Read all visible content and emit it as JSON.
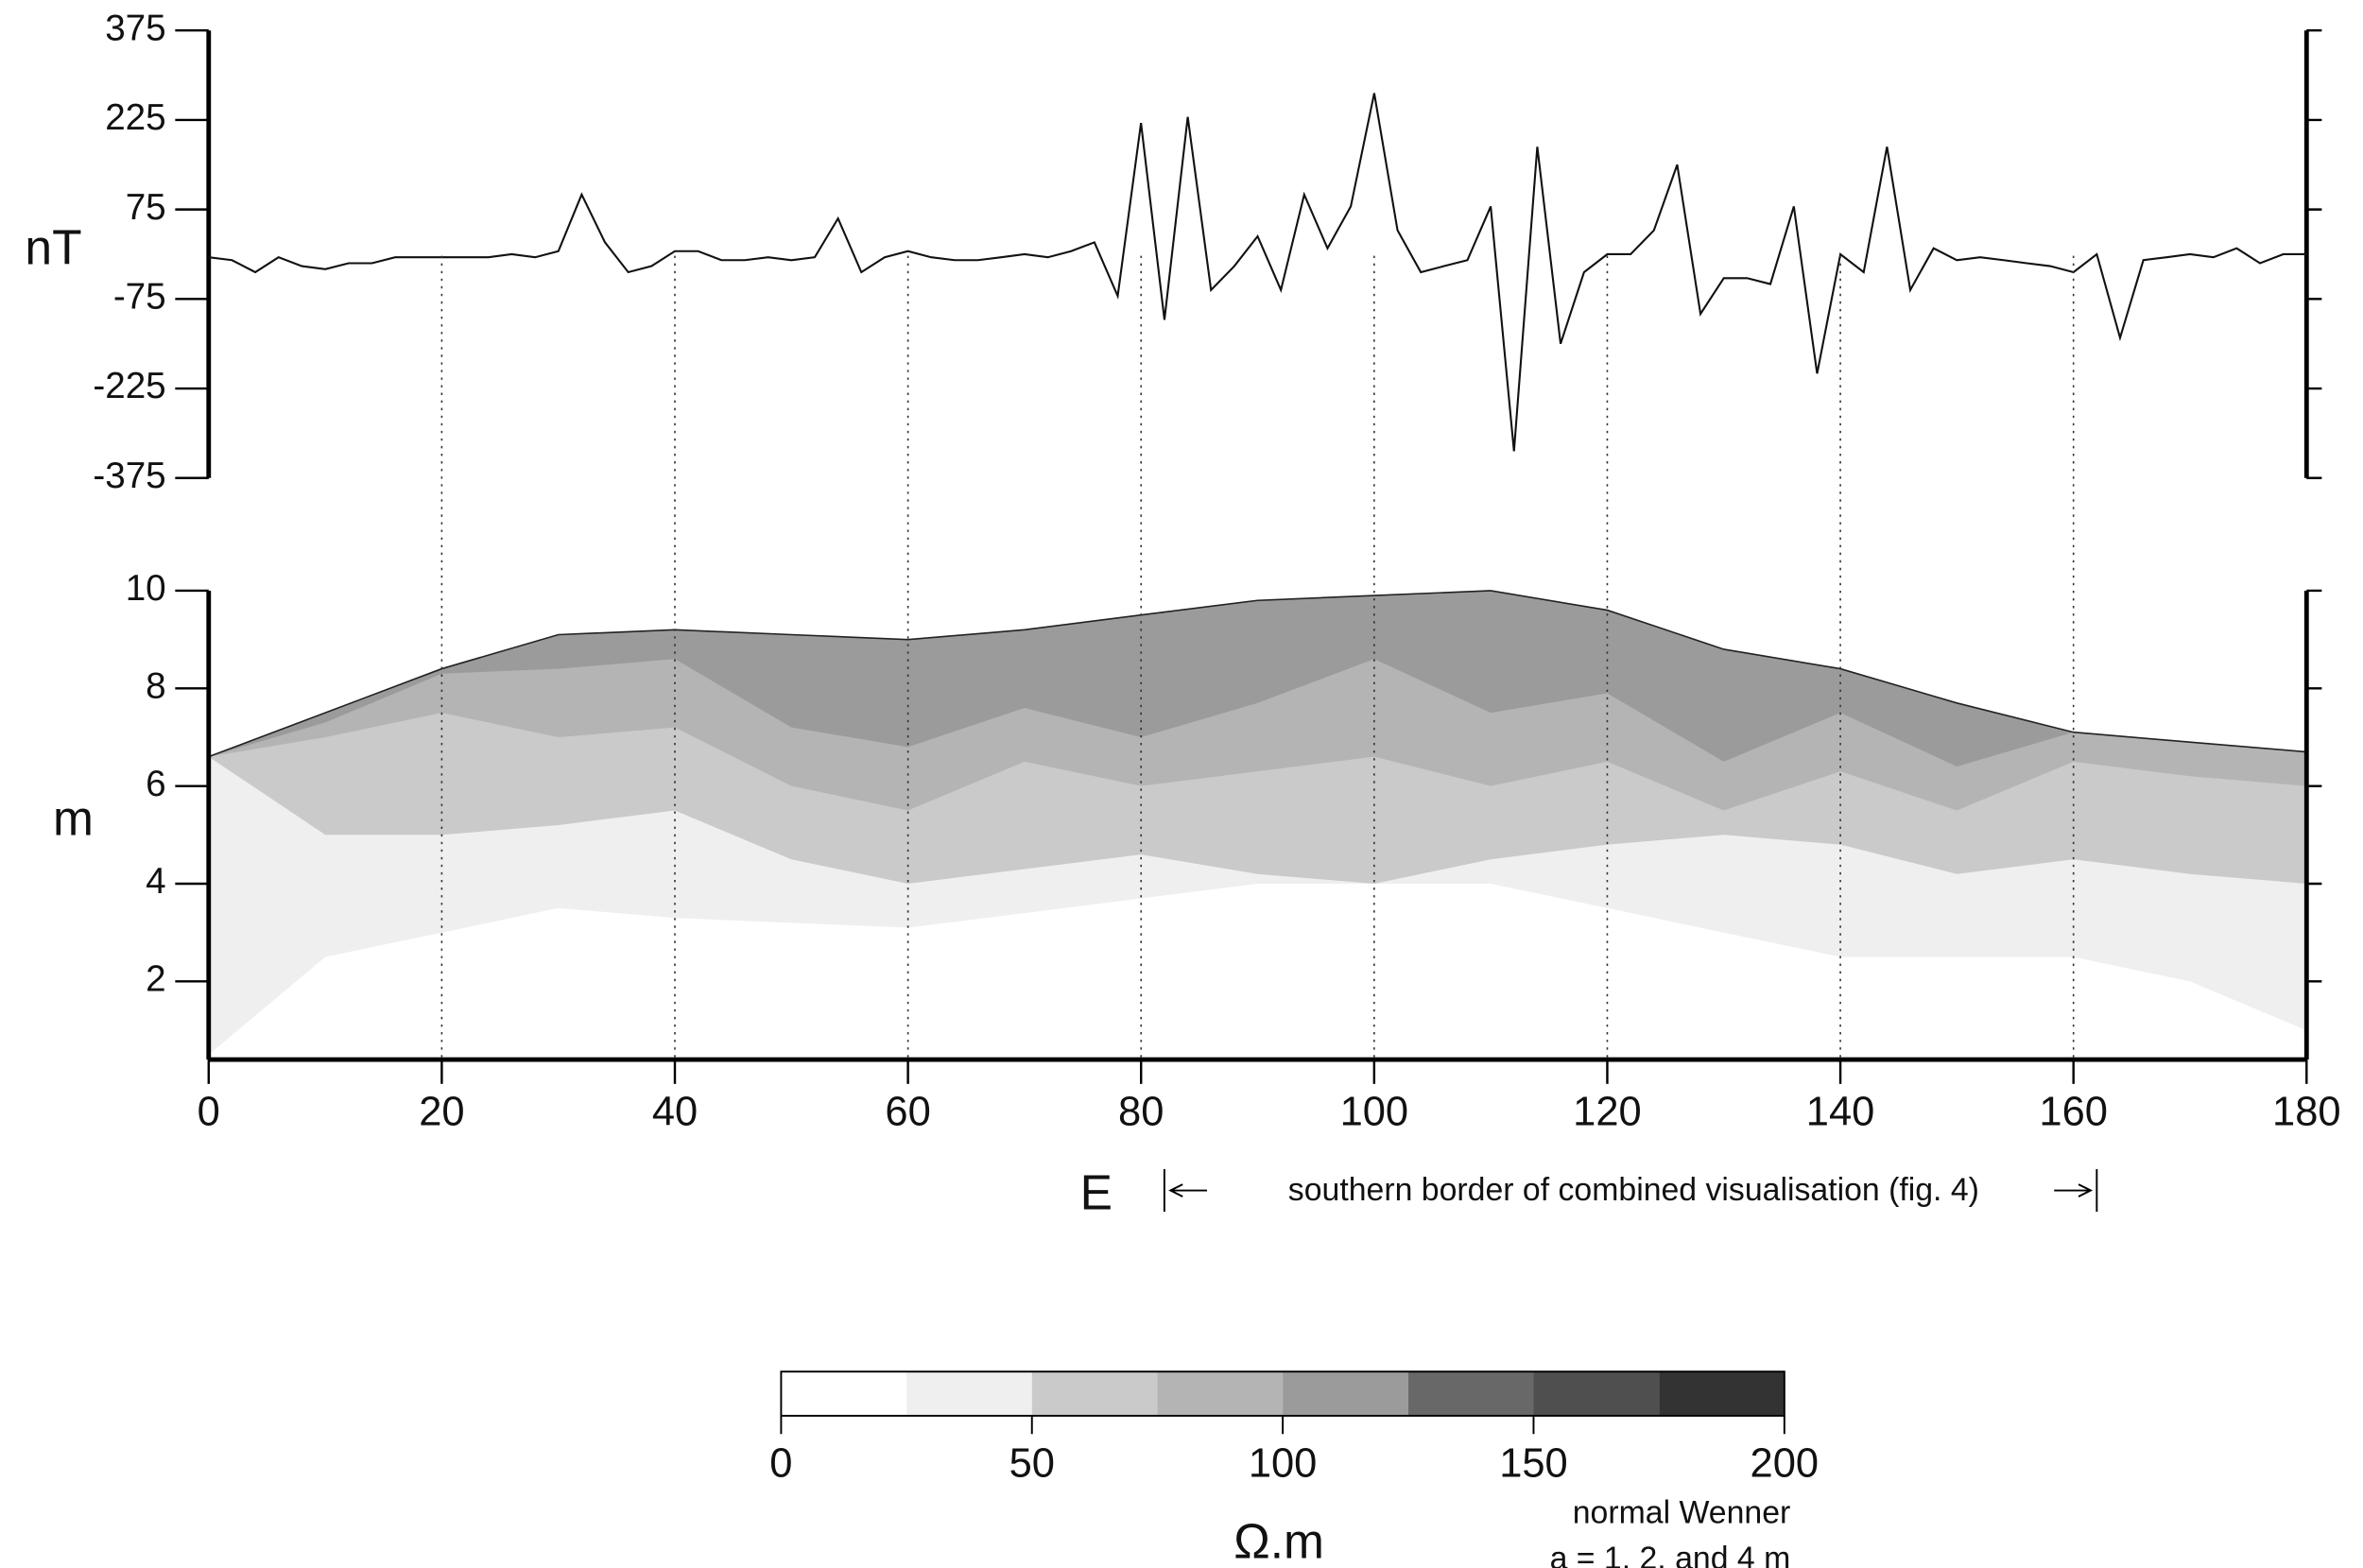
{
  "chart_data": [
    {
      "type": "line",
      "ylabel": "nT",
      "color": "#111111",
      "x": [
        0,
        2,
        4,
        6,
        8,
        10,
        12,
        14,
        16,
        18,
        20,
        22,
        24,
        26,
        28,
        30,
        32,
        34,
        36,
        38,
        40,
        42,
        44,
        46,
        48,
        50,
        52,
        54,
        56,
        58,
        60,
        62,
        64,
        66,
        68,
        70,
        72,
        74,
        76,
        78,
        80,
        82,
        84,
        86,
        88,
        90,
        92,
        94,
        96,
        98,
        100,
        102,
        104,
        106,
        108,
        110,
        112,
        114,
        116,
        118,
        120,
        122,
        124,
        126,
        128,
        130,
        132,
        134,
        136,
        138,
        140,
        142,
        144,
        146,
        148,
        150,
        152,
        154,
        156,
        158,
        160,
        162,
        164,
        166,
        168,
        170,
        172,
        174,
        176,
        178,
        180
      ],
      "values": [
        -5,
        -10,
        -30,
        -5,
        -20,
        -25,
        -15,
        -15,
        -5,
        -5,
        -5,
        -5,
        -5,
        0,
        -5,
        5,
        100,
        20,
        -30,
        -20,
        5,
        5,
        -10,
        -10,
        -5,
        -10,
        -5,
        60,
        -30,
        -5,
        5,
        -5,
        -10,
        -10,
        -5,
        0,
        -5,
        5,
        20,
        -70,
        220,
        -110,
        230,
        -60,
        -20,
        30,
        -60,
        100,
        10,
        80,
        270,
        40,
        -30,
        -20,
        -10,
        80,
        -330,
        180,
        -150,
        -30,
        0,
        0,
        40,
        150,
        -100,
        -40,
        -40,
        -50,
        80,
        -200,
        0,
        -30,
        180,
        -60,
        10,
        -10,
        -5,
        -10,
        -15,
        -20,
        -30,
        0,
        -140,
        -10,
        -5,
        0,
        -5,
        10,
        -15,
        0,
        0
      ],
      "xlim": [
        0,
        180
      ],
      "ylim": [
        -375,
        375
      ],
      "yticks": [
        -375,
        -225,
        -75,
        75,
        225,
        375
      ]
    },
    {
      "type": "area",
      "ylabel": "m",
      "x": [
        0,
        10,
        20,
        30,
        40,
        50,
        60,
        70,
        80,
        90,
        100,
        110,
        120,
        130,
        140,
        150,
        160,
        170,
        180
      ],
      "series": [
        {
          "color": "#9b9b9b",
          "values": [
            6.6,
            7.5,
            8.4,
            9.1,
            9.2,
            9.1,
            9.0,
            9.2,
            9.5,
            9.8,
            9.9,
            10.0,
            9.6,
            8.8,
            8.4,
            7.7,
            7.1,
            6.9,
            6.7
          ]
        },
        {
          "color": "#b4b4b4",
          "values": [
            6.6,
            7.3,
            8.3,
            8.4,
            8.6,
            7.2,
            6.8,
            7.6,
            7.0,
            7.7,
            8.6,
            7.5,
            7.9,
            6.5,
            7.5,
            6.4,
            7.1,
            6.9,
            6.7
          ]
        },
        {
          "color": "#cacaca",
          "values": [
            6.6,
            7.0,
            7.5,
            7.0,
            7.2,
            6.0,
            5.5,
            6.5,
            6.0,
            6.3,
            6.6,
            6.0,
            6.5,
            5.5,
            6.3,
            5.5,
            6.5,
            6.2,
            6.0
          ]
        },
        {
          "color": "#efefef",
          "values": [
            6.6,
            5.0,
            5.0,
            5.2,
            5.5,
            4.5,
            4.0,
            4.3,
            4.6,
            4.2,
            4.0,
            4.5,
            4.8,
            5.0,
            4.8,
            4.2,
            4.5,
            4.2,
            4.0
          ]
        },
        {
          "color": "#ffffff",
          "values": [
            0.5,
            2.5,
            3.0,
            3.5,
            3.3,
            3.2,
            3.1,
            3.4,
            3.7,
            4.0,
            4.0,
            4.0,
            3.5,
            3.0,
            2.5,
            2.5,
            2.5,
            2.0,
            1.0
          ]
        }
      ],
      "xlim": [
        0,
        180
      ],
      "ylim": [
        0.4,
        10
      ],
      "yticks": [
        2,
        4,
        6,
        8,
        10
      ],
      "xticks": [
        0,
        20,
        40,
        60,
        80,
        100,
        120,
        140,
        160,
        180
      ],
      "direction_label": "E",
      "annotation": {
        "text": "southern border of combined visualisation (fig. 4)",
        "x": [
          82,
          162
        ]
      }
    },
    {
      "type": "colorbar",
      "label": "Ω.m",
      "note": [
        "normal Wenner",
        "a = 1, 2, and 4 m"
      ],
      "bins": [
        0,
        25,
        50,
        75,
        100,
        125,
        150,
        175,
        200
      ],
      "colors": [
        "#ffffff",
        "#efefef",
        "#cacaca",
        "#b4b4b4",
        "#9b9b9b",
        "#686868",
        "#4f4f4f",
        "#333333"
      ],
      "xlim": [
        0,
        200
      ],
      "xticks": [
        0,
        50,
        100,
        150,
        200
      ]
    }
  ]
}
